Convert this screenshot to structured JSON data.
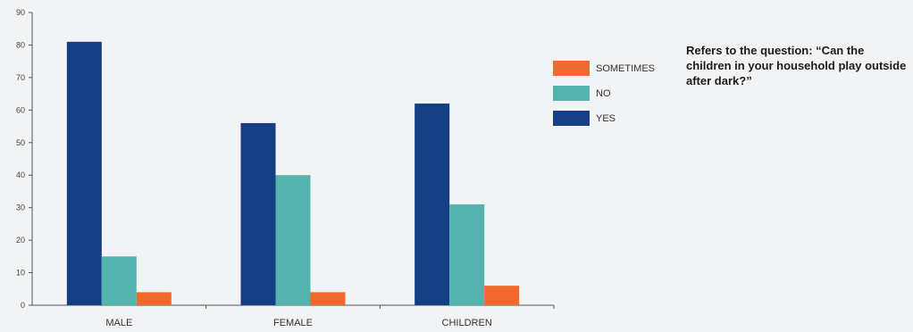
{
  "chart_data": {
    "type": "bar",
    "categories": [
      "MALE",
      "FEMALE",
      "CHILDREN"
    ],
    "series": [
      {
        "name": "YES",
        "values": [
          81,
          56,
          62
        ],
        "color": "#163f83"
      },
      {
        "name": "NO",
        "values": [
          15,
          40,
          31
        ],
        "color": "#55b3ae"
      },
      {
        "name": "SOMETIMES",
        "values": [
          4,
          4,
          6
        ],
        "color": "#ef6a2e"
      }
    ],
    "legend_order": [
      "SOMETIMES",
      "NO",
      "YES"
    ],
    "ylim": [
      0,
      90
    ],
    "yticks": [
      0,
      10,
      20,
      30,
      40,
      50,
      60,
      70,
      80,
      90
    ],
    "title": "",
    "xlabel": "",
    "ylabel": "",
    "grid": false,
    "legend_position": "right"
  },
  "note": "Refers to the question: “Can the children in your household play outside after dark?”"
}
